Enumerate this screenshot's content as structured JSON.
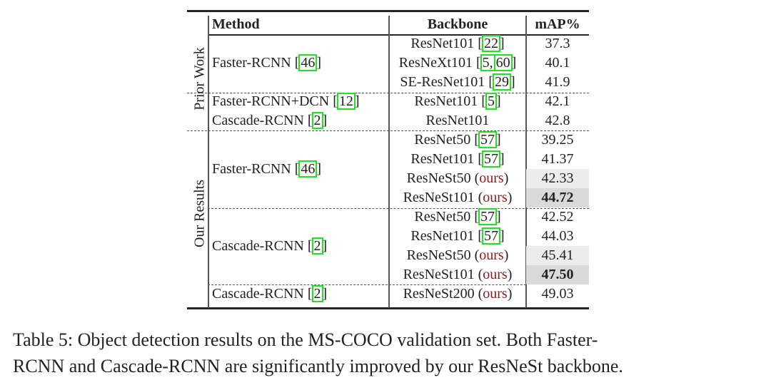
{
  "table": {
    "headers": {
      "method": "Method",
      "backbone": "Backbone",
      "map": "mAP%"
    },
    "groups": [
      "Prior Work",
      "Our Results"
    ],
    "methods": [
      {
        "name": "Faster-RCNN",
        "refs": [
          "46"
        ]
      },
      {
        "name": "Faster-RCNN+DCN",
        "refs": [
          "12"
        ]
      },
      {
        "name": "Cascade-RCNN",
        "refs": [
          "2"
        ]
      },
      {
        "name": "Faster-RCNN",
        "refs": [
          "46"
        ]
      },
      {
        "name": "Cascade-RCNN",
        "refs": [
          "2"
        ]
      },
      {
        "name": "Cascade-RCNN",
        "refs": [
          "2"
        ]
      }
    ],
    "rows": [
      {
        "backbone": "ResNet101",
        "refs": [
          "22"
        ],
        "ours": false,
        "map": "37.3",
        "bold": false,
        "shade": ""
      },
      {
        "backbone": "ResNeXt101",
        "refs": [
          "5",
          "60"
        ],
        "ours": false,
        "map": "40.1",
        "bold": false,
        "shade": ""
      },
      {
        "backbone": "SE-ResNet101",
        "refs": [
          "29"
        ],
        "ours": false,
        "map": "41.9",
        "bold": false,
        "shade": ""
      },
      {
        "backbone": "ResNet101",
        "refs": [
          "5"
        ],
        "ours": false,
        "map": "42.1",
        "bold": false,
        "shade": ""
      },
      {
        "backbone": "ResNet101",
        "refs": [],
        "ours": false,
        "map": "42.8",
        "bold": false,
        "shade": ""
      },
      {
        "backbone": "ResNet50",
        "refs": [
          "57"
        ],
        "ours": false,
        "map": "39.25",
        "bold": false,
        "shade": ""
      },
      {
        "backbone": "ResNet101",
        "refs": [
          "57"
        ],
        "ours": false,
        "map": "41.37",
        "bold": false,
        "shade": ""
      },
      {
        "backbone": "ResNeSt50",
        "refs": [],
        "ours": true,
        "map": "42.33",
        "bold": false,
        "shade": "light"
      },
      {
        "backbone": "ResNeSt101",
        "refs": [],
        "ours": true,
        "map": "44.72",
        "bold": true,
        "shade": "dark"
      },
      {
        "backbone": "ResNet50",
        "refs": [
          "57"
        ],
        "ours": false,
        "map": "42.52",
        "bold": false,
        "shade": ""
      },
      {
        "backbone": "ResNet101",
        "refs": [
          "57"
        ],
        "ours": false,
        "map": "44.03",
        "bold": false,
        "shade": ""
      },
      {
        "backbone": "ResNeSt50",
        "refs": [],
        "ours": true,
        "map": "45.41",
        "bold": false,
        "shade": "light"
      },
      {
        "backbone": "ResNeSt101",
        "refs": [],
        "ours": true,
        "map": "47.50",
        "bold": true,
        "shade": "dark"
      },
      {
        "backbone": "ResNeSt200",
        "refs": [],
        "ours": true,
        "map": "49.03",
        "bold": false,
        "shade": ""
      }
    ],
    "ours_label": "ours"
  },
  "caption": {
    "line1": "Table 5: Object detection results on the MS-COCO validation set. Both Faster-",
    "line2": "RCNN and Cascade-RCNN are significantly improved by our ResNeSt backbone."
  }
}
